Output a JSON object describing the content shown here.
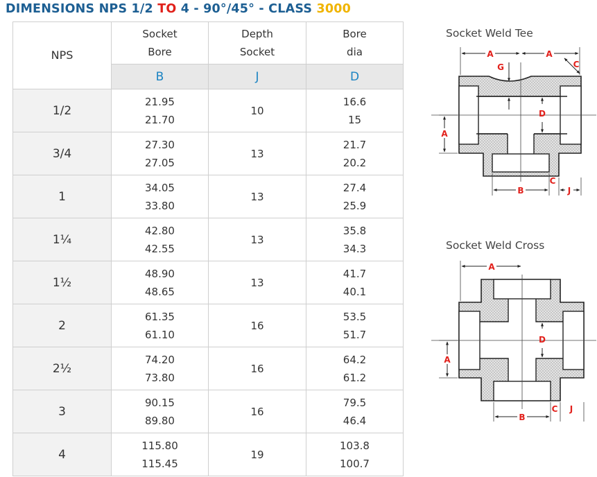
{
  "title": {
    "part1": "DIMENSIONS NPS 1/2 ",
    "part2": "TO",
    "part3": " 4 - 90°/45° - CLASS ",
    "part4": "3000"
  },
  "table": {
    "nps_header": "NPS",
    "col_headers": [
      {
        "line1": "Socket",
        "line2": "Bore",
        "letter": "B"
      },
      {
        "line1": "Depth",
        "line2": "Socket",
        "letter": "J"
      },
      {
        "line1": "Bore",
        "line2": "dia",
        "letter": "D"
      }
    ],
    "rows": [
      {
        "nps": "1/2",
        "bore_max": "21.95",
        "bore_min": "21.70",
        "depth": "10",
        "dia_max": "16.6",
        "dia_min": "15"
      },
      {
        "nps": "3/4",
        "bore_max": "27.30",
        "bore_min": "27.05",
        "depth": "13",
        "dia_max": "21.7",
        "dia_min": "20.2"
      },
      {
        "nps": "1",
        "bore_max": "34.05",
        "bore_min": "33.80",
        "depth": "13",
        "dia_max": "27.4",
        "dia_min": "25.9"
      },
      {
        "nps": "1¼",
        "bore_max": "42.80",
        "bore_min": "42.55",
        "depth": "13",
        "dia_max": "35.8",
        "dia_min": "34.3"
      },
      {
        "nps": "1½",
        "bore_max": "48.90",
        "bore_min": "48.65",
        "depth": "13",
        "dia_max": "41.7",
        "dia_min": "40.1"
      },
      {
        "nps": "2",
        "bore_max": "61.35",
        "bore_min": "61.10",
        "depth": "16",
        "dia_max": "53.5",
        "dia_min": "51.7"
      },
      {
        "nps": "2½",
        "bore_max": "74.20",
        "bore_min": "73.80",
        "depth": "16",
        "dia_max": "64.2",
        "dia_min": "61.2"
      },
      {
        "nps": "3",
        "bore_max": "90.15",
        "bore_min": "89.80",
        "depth": "16",
        "dia_max": "79.5",
        "dia_min": "46.4"
      },
      {
        "nps": "4",
        "bore_max": "115.80",
        "bore_min": "115.45",
        "depth": "19",
        "dia_max": "103.8",
        "dia_min": "100.7"
      }
    ]
  },
  "drawings": {
    "tee": {
      "caption": "Socket Weld Tee",
      "labels": {
        "a_top_left": "A",
        "a_top_right": "A",
        "c_top": "C",
        "g": "G",
        "d": "D",
        "a_side": "A",
        "b": "B",
        "c_bottom": "C",
        "j": "J"
      }
    },
    "cross": {
      "caption": "Socket Weld Cross",
      "labels": {
        "a_top": "A",
        "d": "D",
        "a_side": "A",
        "b": "B",
        "c": "C",
        "j": "J"
      }
    }
  },
  "colors": {
    "title_blue": "#1d5f93",
    "title_red": "#e0201a",
    "title_gold": "#f0b400",
    "letter_blue": "#1a83c2",
    "dim_red": "#e2211c"
  }
}
